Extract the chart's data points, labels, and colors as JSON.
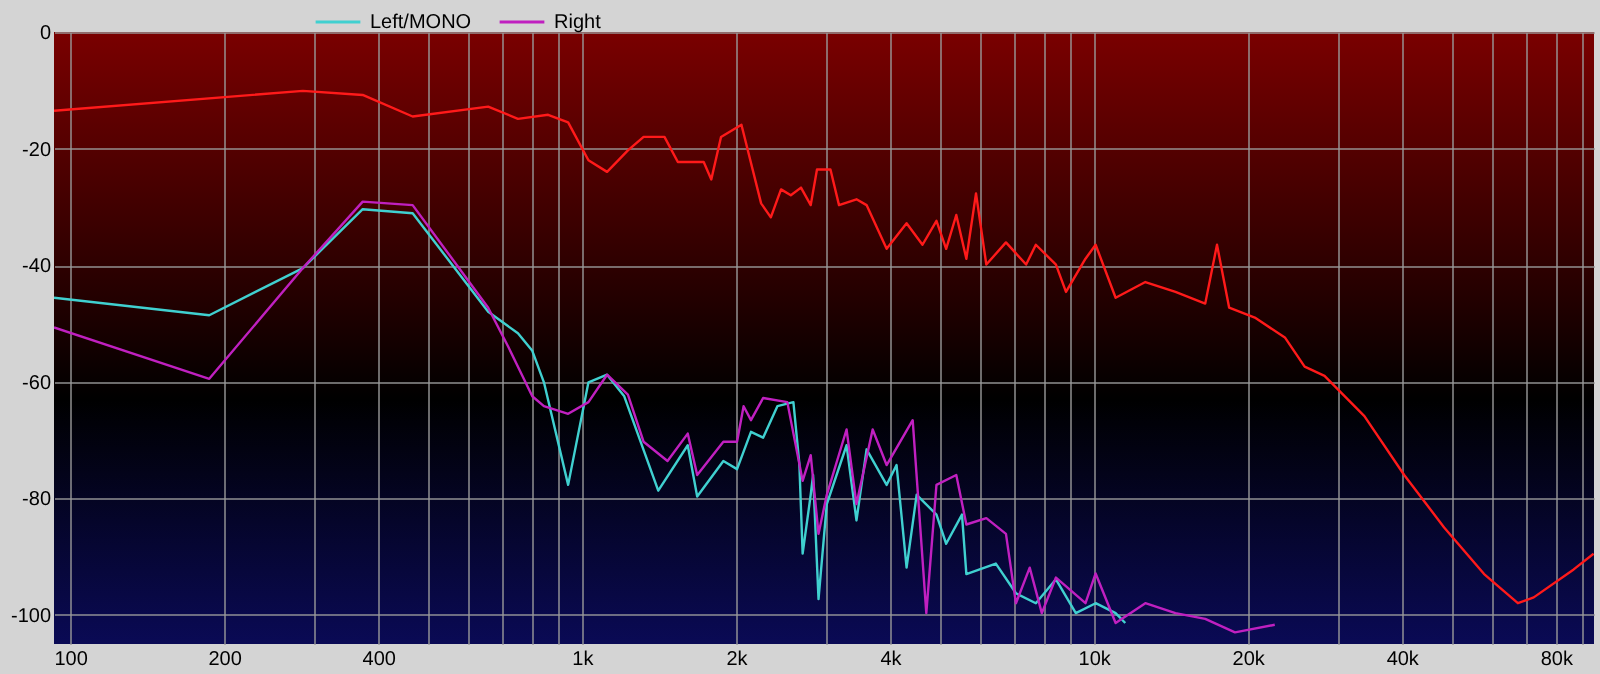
{
  "chart_data": {
    "type": "line",
    "log": "x",
    "grid": true,
    "legend": "top left",
    "xlim": [
      93,
      95000
    ],
    "ylim": [
      -105,
      0
    ],
    "xticks": [
      100,
      200,
      {
        "value": 300,
        "label": null
      },
      400,
      {
        "value": 500,
        "label": null
      },
      {
        "value": 600,
        "label": null
      },
      {
        "value": 700,
        "label": null
      },
      {
        "value": 800,
        "label": null
      },
      {
        "value": 900,
        "label": null
      },
      {
        "value": 1000,
        "label": "1k"
      },
      {
        "value": 2000,
        "label": "2k"
      },
      {
        "value": 3000,
        "label": null
      },
      {
        "value": 4000,
        "label": "4k"
      },
      {
        "value": 5000,
        "label": null
      },
      {
        "value": 6000,
        "label": null
      },
      {
        "value": 7000,
        "label": null
      },
      {
        "value": 8000,
        "label": null
      },
      {
        "value": 9000,
        "label": null
      },
      {
        "value": 10000,
        "label": "10k"
      },
      {
        "value": 20000,
        "label": "20k"
      },
      {
        "value": 30000,
        "label": null
      },
      {
        "value": 40000,
        "label": "40k"
      },
      {
        "value": 50000,
        "label": null
      },
      {
        "value": 60000,
        "label": null
      },
      {
        "value": 70000,
        "label": null
      },
      {
        "value": 80000,
        "label": "80k"
      },
      {
        "value": 90000,
        "label": null
      }
    ],
    "yticks": [
      0,
      -20,
      -40,
      -60,
      -80,
      -100
    ],
    "series": [
      {
        "color": "#ff1a1a",
        "x": [
          93,
          285,
          373,
          467,
          656,
          750,
          859,
          940,
          1030,
          1120,
          1230,
          1320,
          1450,
          1540,
          1730,
          1790,
          1870,
          2050,
          2240,
          2340,
          2450,
          2560,
          2680,
          2800,
          2880,
          3060,
          3180,
          3440,
          3600,
          3940,
          4310,
          4630,
          4930,
          5150,
          5390,
          5640,
          5890,
          6170,
          6740,
          7380,
          7710,
          8440,
          8830,
          9640,
          10090,
          11040,
          12620,
          14450,
          16520,
          17420,
          18400,
          20650,
          23640,
          25840,
          28260,
          33810,
          40440,
          48400,
          57940,
          67450,
          72440,
          86700,
          94840
        ],
        "values": [
          -13.5,
          -10.1,
          -10.8,
          -14.5,
          -12.8,
          -14.9,
          -14.2,
          -15.5,
          -22,
          -24,
          -20.3,
          -18,
          -18,
          -22.3,
          -22.3,
          -25.3,
          -18,
          -15.9,
          -29.4,
          -31.8,
          -27,
          -28,
          -26.7,
          -29.7,
          -23.6,
          -23.6,
          -29.7,
          -28.7,
          -29.7,
          -37.2,
          -32.8,
          -36.5,
          -32.4,
          -37.2,
          -31.4,
          -38.9,
          -27.7,
          -39.9,
          -36.1,
          -39.9,
          -36.5,
          -39.9,
          -44.6,
          -38.9,
          -36.5,
          -45.6,
          -42.9,
          -44.6,
          -46.6,
          -36.5,
          -47.3,
          -49,
          -52.4,
          -57.4,
          -59,
          -65.9,
          -76,
          -85,
          -93,
          -98,
          -97,
          -92.2,
          -89.5
        ]
      },
      {
        "name": "Left/MONO",
        "color": "#40d0d0",
        "x": [
          93,
          187,
          285,
          373,
          467,
          656,
          750,
          800,
          843,
          940,
          1030,
          1120,
          1210,
          1410,
          1610,
          1680,
          1890,
          2010,
          2140,
          2260,
          2410,
          2590,
          2660,
          2700,
          2800,
          2830,
          2900,
          3010,
          3290,
          3440,
          3600,
          3940,
          4120,
          4310,
          4510,
          4930,
          5150,
          5530,
          5640,
          6440,
          7050,
          7710,
          8440,
          9230,
          10090,
          11040,
          11530
        ],
        "values": [
          -45.6,
          -48.6,
          -40.5,
          -30.4,
          -31.1,
          -48,
          -51.7,
          -54.7,
          -60.1,
          -77.7,
          -60.1,
          -58.8,
          -62.5,
          -78.7,
          -70.9,
          -79.7,
          -73.6,
          -75,
          -68.6,
          -69.6,
          -64.2,
          -63.5,
          -74,
          -89.5,
          -79.4,
          -76,
          -97.3,
          -81,
          -70.9,
          -83.8,
          -71.6,
          -77.7,
          -74.3,
          -91.9,
          -79.4,
          -82.8,
          -87.8,
          -82.8,
          -93,
          -91.2,
          -96.3,
          -98,
          -93.9,
          -99.7,
          -98,
          -99.7,
          -101.4
        ]
      },
      {
        "name": "Right",
        "color": "#c020c0",
        "x": [
          93,
          187,
          285,
          373,
          467,
          656,
          718,
          800,
          843,
          940,
          1030,
          1120,
          1230,
          1320,
          1470,
          1610,
          1680,
          1890,
          2010,
          2070,
          2140,
          2260,
          2520,
          2700,
          2800,
          2900,
          3010,
          3290,
          3440,
          3700,
          3940,
          4430,
          4550,
          4710,
          4930,
          5390,
          5640,
          6170,
          6740,
          7050,
          7500,
          7920,
          8440,
          9640,
          10090,
          11040,
          12620,
          14450,
          16520,
          18890,
          22590
        ],
        "values": [
          -50.7,
          -59.5,
          -40.5,
          -29.1,
          -29.7,
          -47.3,
          -54,
          -62.5,
          -64.2,
          -65.5,
          -63.5,
          -58.8,
          -62.2,
          -70.3,
          -73.6,
          -68.9,
          -76,
          -70.3,
          -70.3,
          -64.2,
          -66.6,
          -62.8,
          -63.5,
          -77,
          -72.6,
          -86.1,
          -79.4,
          -68.2,
          -81,
          -68.2,
          -74.3,
          -66.6,
          -81,
          -99.7,
          -77.7,
          -76,
          -84.5,
          -83.4,
          -86.1,
          -98,
          -91.9,
          -99.7,
          -93.6,
          -98,
          -92.9,
          -101.4,
          -98,
          -99.7,
          -100.7,
          -103,
          -101.7
        ]
      }
    ]
  }
}
